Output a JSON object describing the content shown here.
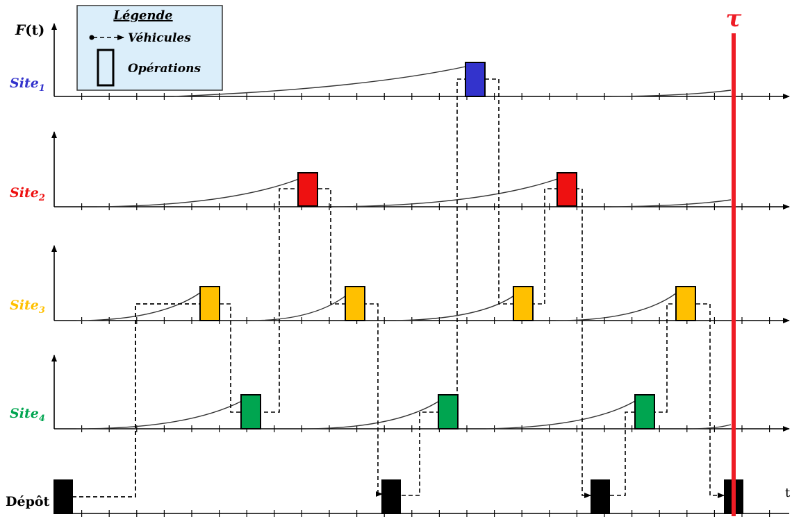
{
  "legend": {
    "title": "Légende",
    "vehicles_label": "Véhicules",
    "operations_label": "Opérations"
  },
  "axis_label": {
    "name": "F",
    "arg": "(t)"
  },
  "time_label": "t",
  "deadline_label": "τ",
  "depot_label": "Dépôt",
  "sites": [
    {
      "name": "Site",
      "sub": "1",
      "color": "#3333cc"
    },
    {
      "name": "Site",
      "sub": "2",
      "color": "#ee1111"
    },
    {
      "name": "Site",
      "sub": "3",
      "color": "#ffc000"
    },
    {
      "name": "Site",
      "sub": "4",
      "color": "#00a550"
    }
  ],
  "colors": {
    "deadline": "#ee1c25",
    "depot_op": "#000000",
    "legend_bg": "#dbeefa"
  }
}
